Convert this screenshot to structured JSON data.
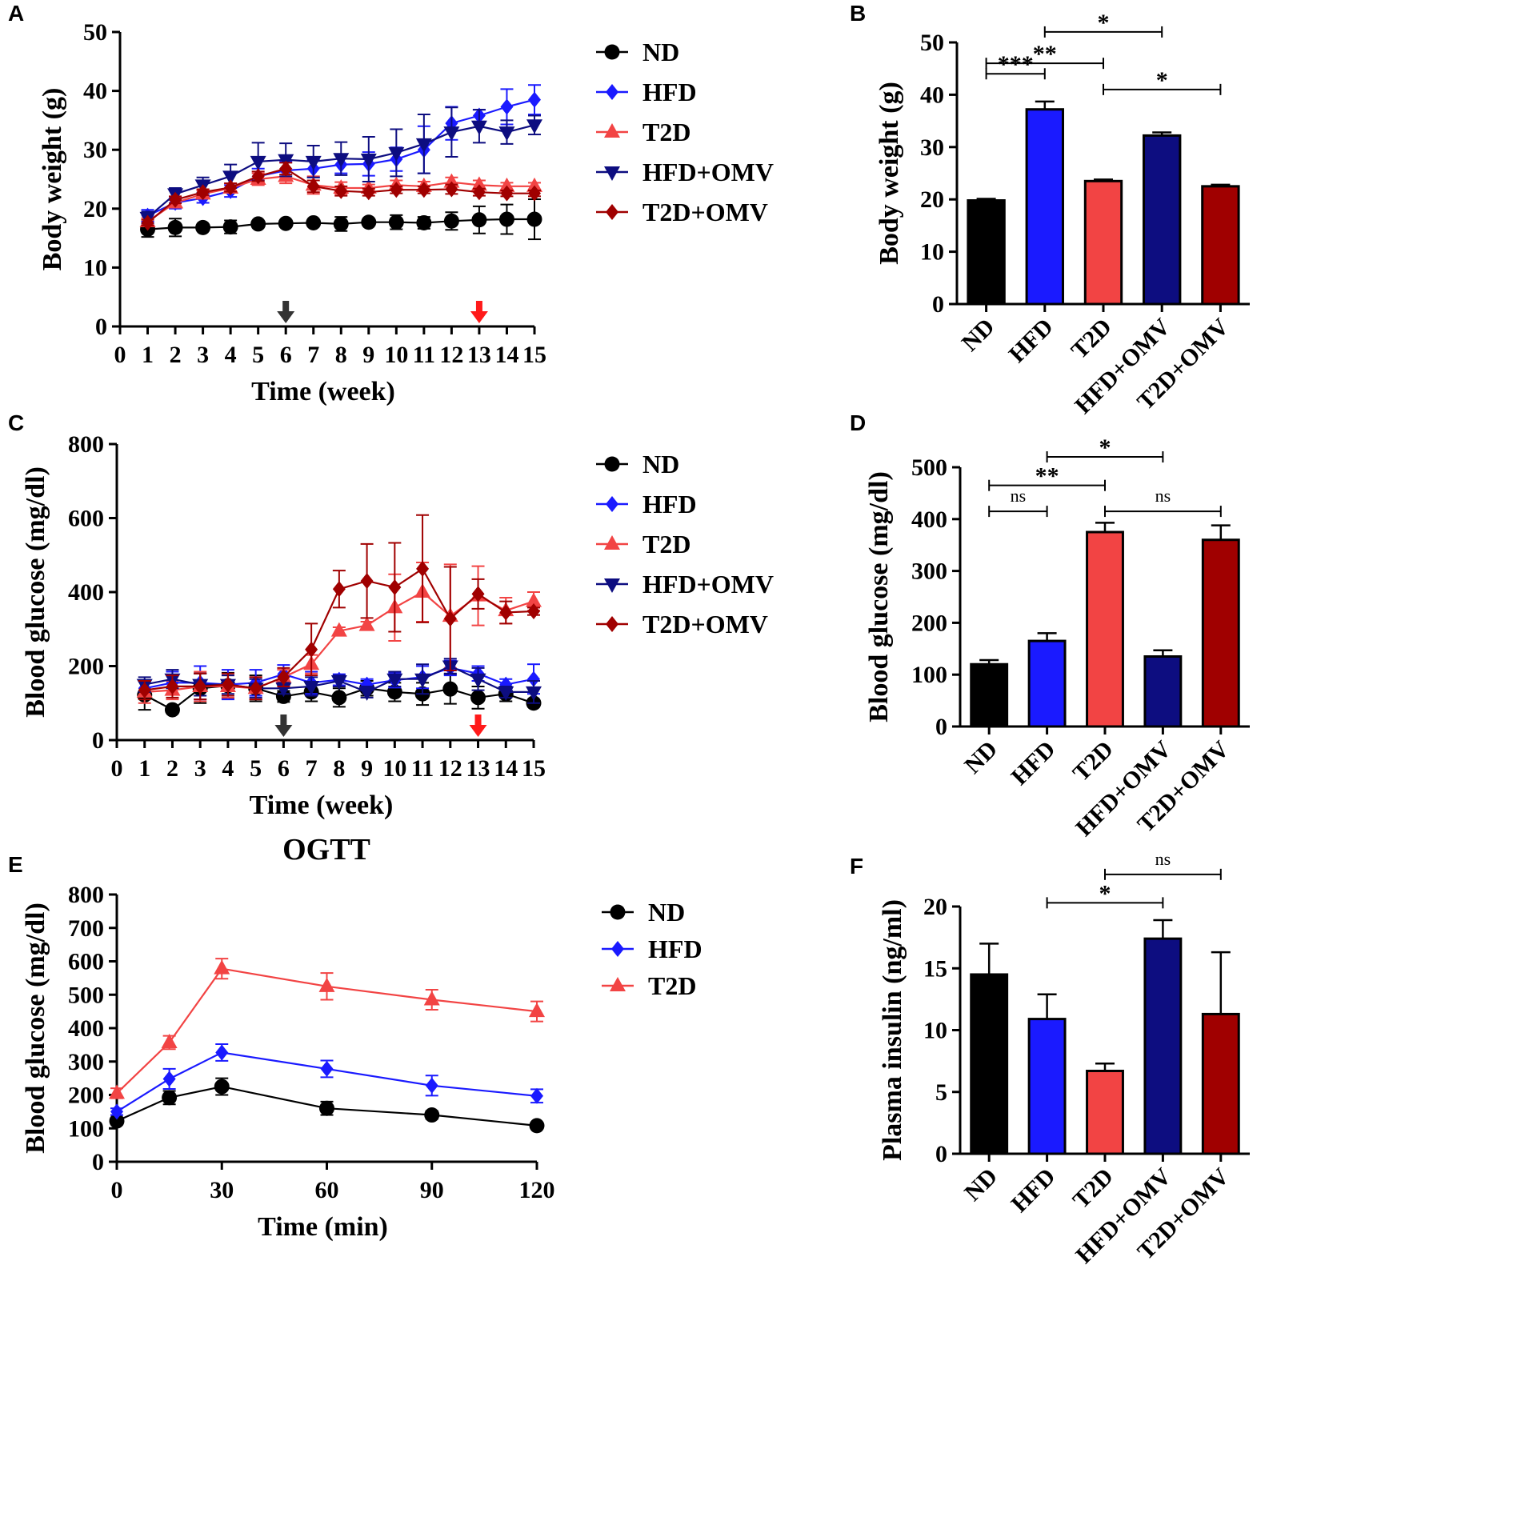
{
  "figure": {
    "colors": {
      "ND": "#000000",
      "HFD": "#1a1aff",
      "T2D": "#f24444",
      "HFD+OMV": "#0d0d80",
      "T2D+OMV": "#a00000",
      "arrow_start": "#333333",
      "arrow_end": "#ff1a1a"
    }
  },
  "chart_data": [
    {
      "panel": "A",
      "type": "line",
      "ylabel": "Body weight (g)",
      "xlabel": "Time (week)",
      "xlim": [
        0,
        15
      ],
      "ylim": [
        0,
        50
      ],
      "xticks": [
        0,
        1,
        2,
        3,
        4,
        5,
        6,
        7,
        8,
        9,
        10,
        11,
        12,
        13,
        14,
        15
      ],
      "yticks": [
        0,
        10,
        20,
        30,
        40,
        50
      ],
      "arrows": [
        {
          "x": 6,
          "color": "arrow_start"
        },
        {
          "x": 13,
          "color": "arrow_end"
        }
      ],
      "x": [
        1,
        2,
        3,
        4,
        5,
        6,
        7,
        8,
        9,
        10,
        11,
        12,
        13,
        14,
        15
      ],
      "series": [
        {
          "name": "ND",
          "marker": "circle",
          "values": [
            16.5,
            16.8,
            16.8,
            16.9,
            17.4,
            17.5,
            17.6,
            17.4,
            17.7,
            17.7,
            17.6,
            17.9,
            18.1,
            18.2,
            18.2
          ],
          "errors": [
            1.3,
            1.5,
            0.5,
            1.1,
            0.4,
            0.4,
            0.4,
            1.2,
            0.4,
            1.2,
            1.0,
            1.5,
            2.3,
            2.5,
            3.4
          ]
        },
        {
          "name": "HFD",
          "marker": "diamond",
          "values": [
            18.8,
            21.0,
            21.8,
            23.0,
            25.5,
            26.5,
            26.8,
            27.5,
            27.6,
            28.4,
            30.0,
            34.5,
            35.8,
            37.3,
            38.5
          ],
          "errors": [
            1.0,
            1.0,
            0.8,
            1.0,
            1.3,
            1.5,
            1.5,
            1.5,
            2.0,
            2.0,
            4.0,
            2.8,
            1.0,
            3.0,
            2.5
          ]
        },
        {
          "name": "T2D",
          "marker": "triangle-up",
          "values": [
            17.8,
            21.0,
            22.5,
            23.5,
            25.0,
            25.5,
            24.0,
            23.5,
            23.5,
            24.0,
            23.8,
            24.5,
            24.0,
            23.8,
            23.8
          ],
          "errors": [
            0.6,
            0.8,
            0.6,
            0.8,
            1.0,
            1.2,
            1.5,
            1.0,
            0.6,
            0.8,
            0.8,
            0.8,
            0.8,
            0.6,
            0.6
          ]
        },
        {
          "name": "HFD+OMV",
          "marker": "triangle-down",
          "values": [
            18.5,
            22.5,
            24.0,
            25.5,
            28.0,
            28.3,
            28.0,
            28.5,
            28.4,
            29.5,
            31.0,
            33.0,
            34.0,
            33.0,
            34.2
          ],
          "errors": [
            1.0,
            1.0,
            1.3,
            2.0,
            3.2,
            2.8,
            2.7,
            2.8,
            3.8,
            4.0,
            5.0,
            4.2,
            2.8,
            2.0,
            1.6
          ]
        },
        {
          "name": "T2D+OMV",
          "marker": "diamond",
          "values": [
            17.6,
            21.5,
            22.8,
            23.6,
            25.5,
            26.8,
            23.8,
            23.0,
            22.8,
            23.2,
            23.2,
            23.3,
            22.8,
            22.6,
            22.6
          ],
          "errors": [
            0.5,
            0.6,
            0.5,
            0.7,
            0.8,
            1.0,
            1.0,
            0.8,
            0.6,
            0.6,
            0.6,
            0.8,
            0.6,
            0.5,
            0.5
          ]
        }
      ]
    },
    {
      "panel": "B",
      "type": "bar",
      "ylabel": "Body weight (g)",
      "ylim": [
        0,
        50
      ],
      "yticks": [
        0,
        10,
        20,
        30,
        40,
        50
      ],
      "categories": [
        "ND",
        "HFD",
        "T2D",
        "HFD+OMV",
        "T2D+OMV"
      ],
      "values": [
        19.8,
        37.2,
        23.5,
        32.2,
        22.5
      ],
      "errors": [
        0.3,
        1.5,
        0.3,
        0.6,
        0.3
      ],
      "significance": [
        {
          "from": 0,
          "to": 1,
          "level": 44,
          "label": "***"
        },
        {
          "from": 0,
          "to": 2,
          "level": 46,
          "label": "**"
        },
        {
          "from": 1,
          "to": 3,
          "level": 52,
          "label": "*"
        },
        {
          "from": 2,
          "to": 4,
          "level": 41,
          "label": "*"
        }
      ]
    },
    {
      "panel": "C",
      "type": "line",
      "ylabel": "Blood glucose (mg/dl)",
      "xlabel": "Time (week)",
      "xlim": [
        0,
        15
      ],
      "ylim": [
        0,
        800
      ],
      "xticks": [
        0,
        1,
        2,
        3,
        4,
        5,
        6,
        7,
        8,
        9,
        10,
        11,
        12,
        13,
        14,
        15
      ],
      "yticks": [
        0,
        200,
        400,
        600,
        800
      ],
      "arrows": [
        {
          "x": 6,
          "color": "arrow_start"
        },
        {
          "x": 13,
          "color": "arrow_end"
        }
      ],
      "x": [
        1,
        2,
        3,
        4,
        5,
        6,
        7,
        8,
        9,
        10,
        11,
        12,
        13,
        14,
        15
      ],
      "series": [
        {
          "name": "ND",
          "marker": "circle",
          "values": [
            122,
            82,
            140,
            147,
            140,
            118,
            130,
            115,
            140,
            130,
            125,
            138,
            115,
            125,
            100
          ],
          "errors": [
            40,
            5,
            40,
            35,
            35,
            15,
            25,
            25,
            20,
            25,
            30,
            40,
            30,
            20,
            10
          ]
        },
        {
          "name": "HFD",
          "marker": "diamond",
          "values": [
            140,
            155,
            155,
            150,
            155,
            178,
            155,
            163,
            150,
            162,
            170,
            195,
            180,
            150,
            165
          ],
          "errors": [
            20,
            30,
            45,
            40,
            35,
            25,
            30,
            15,
            15,
            20,
            30,
            20,
            20,
            15,
            40
          ]
        },
        {
          "name": "T2D",
          "marker": "triangle-up",
          "values": [
            130,
            135,
            145,
            145,
            140,
            170,
            205,
            295,
            310,
            358,
            400,
            335,
            390,
            350,
            375
          ],
          "errors": [
            30,
            25,
            40,
            30,
            30,
            20,
            25,
            10,
            10,
            90,
            80,
            140,
            80,
            35,
            25
          ]
        },
        {
          "name": "HFD+OMV",
          "marker": "triangle-down",
          "values": [
            150,
            165,
            150,
            150,
            140,
            140,
            145,
            160,
            130,
            165,
            165,
            200,
            165,
            130,
            130
          ],
          "errors": [
            20,
            25,
            30,
            25,
            25,
            15,
            25,
            15,
            15,
            20,
            40,
            20,
            30,
            15,
            30
          ]
        },
        {
          "name": "T2D+OMV",
          "marker": "diamond",
          "values": [
            135,
            145,
            145,
            150,
            140,
            170,
            245,
            408,
            430,
            413,
            463,
            328,
            395,
            345,
            348
          ],
          "errors": [
            25,
            30,
            35,
            30,
            30,
            25,
            70,
            50,
            100,
            120,
            145,
            140,
            40,
            30,
            10
          ]
        }
      ]
    },
    {
      "panel": "D",
      "type": "bar",
      "ylabel": "Blood glucose (mg/dl)",
      "ylim": [
        0,
        500
      ],
      "yticks": [
        0,
        100,
        200,
        300,
        400,
        500
      ],
      "categories": [
        "ND",
        "HFD",
        "T2D",
        "HFD+OMV",
        "T2D+OMV"
      ],
      "values": [
        120,
        165,
        375,
        135,
        360
      ],
      "errors": [
        8,
        15,
        18,
        12,
        28
      ],
      "significance": [
        {
          "from": 0,
          "to": 1,
          "level": 415,
          "label": "ns"
        },
        {
          "from": 0,
          "to": 2,
          "level": 465,
          "label": "**"
        },
        {
          "from": 1,
          "to": 3,
          "level": 520,
          "label": "*"
        },
        {
          "from": 2,
          "to": 4,
          "level": 415,
          "label": "ns"
        }
      ]
    },
    {
      "panel": "E",
      "type": "line",
      "title": "OGTT",
      "ylabel": "Blood glucose (mg/dl)",
      "xlabel": "Time (min)",
      "xlim": [
        0,
        120
      ],
      "ylim": [
        0,
        800
      ],
      "xticks": [
        0,
        30,
        60,
        90,
        120
      ],
      "yticks": [
        0,
        100,
        200,
        300,
        400,
        500,
        600,
        700,
        800
      ],
      "x": [
        0,
        15,
        30,
        60,
        90,
        120
      ],
      "series": [
        {
          "name": "ND",
          "marker": "circle",
          "values": [
            122,
            192,
            225,
            160,
            140,
            108
          ],
          "errors": [
            10,
            20,
            25,
            20,
            12,
            5
          ]
        },
        {
          "name": "HFD",
          "marker": "diamond",
          "values": [
            150,
            248,
            327,
            278,
            228,
            197
          ],
          "errors": [
            10,
            30,
            25,
            25,
            30,
            20
          ]
        },
        {
          "name": "T2D",
          "marker": "triangle-up",
          "values": [
            205,
            357,
            578,
            525,
            485,
            450
          ],
          "errors": [
            15,
            20,
            30,
            40,
            30,
            30
          ]
        }
      ]
    },
    {
      "panel": "F",
      "type": "bar",
      "ylabel": "Plasma insulin (ng/ml)",
      "ylim": [
        0,
        20
      ],
      "yticks": [
        0,
        5,
        10,
        15,
        20
      ],
      "categories": [
        "ND",
        "HFD",
        "T2D",
        "HFD+OMV",
        "T2D+OMV"
      ],
      "values": [
        14.5,
        10.9,
        6.7,
        17.4,
        11.3
      ],
      "errors": [
        2.5,
        2.0,
        0.6,
        1.5,
        5.0
      ],
      "significance": [
        {
          "from": 1,
          "to": 3,
          "level": 20.3,
          "label": "*"
        },
        {
          "from": 2,
          "to": 4,
          "level": 22.6,
          "label": "ns"
        }
      ]
    }
  ]
}
